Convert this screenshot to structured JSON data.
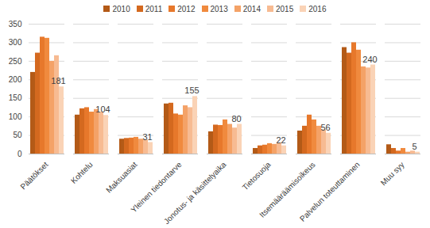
{
  "chart_data": {
    "type": "bar",
    "categories": [
      "Päätökset",
      "Kohtelu",
      "Maksuasiat",
      "Yleinen tiedontarve",
      "Jonotus- ja käsittelyaika",
      "Tietosuoja",
      "Itsemääräämisoikeus",
      "Palvelun toteuttaminen",
      "Muu syy"
    ],
    "series": [
      {
        "name": "2010",
        "color": "#b35a17",
        "values": [
          220,
          105,
          40,
          135,
          60,
          15,
          62,
          287,
          25
        ]
      },
      {
        "name": "2011",
        "color": "#d4691f",
        "values": [
          272,
          122,
          42,
          137,
          78,
          22,
          75,
          272,
          15
        ]
      },
      {
        "name": "2012",
        "color": "#e7782b",
        "values": [
          315,
          125,
          43,
          108,
          77,
          24,
          105,
          300,
          8
        ]
      },
      {
        "name": "2013",
        "color": "#f08a3e",
        "values": [
          312,
          113,
          45,
          105,
          92,
          28,
          92,
          280,
          15
        ]
      },
      {
        "name": "2014",
        "color": "#f4a267",
        "values": [
          250,
          120,
          40,
          130,
          80,
          26,
          75,
          235,
          5
        ]
      },
      {
        "name": "2015",
        "color": "#f7bb92",
        "values": [
          265,
          113,
          38,
          125,
          70,
          30,
          65,
          232,
          8
        ]
      },
      {
        "name": "2016",
        "color": "#fad3b6",
        "values": [
          181,
          104,
          31,
          155,
          80,
          22,
          56,
          240,
          5
        ],
        "data_labels": true
      }
    ],
    "ylim": [
      0,
      350
    ],
    "yticks": [
      0,
      50,
      100,
      150,
      200,
      250,
      300,
      350
    ],
    "grid": true,
    "legend": "top"
  }
}
